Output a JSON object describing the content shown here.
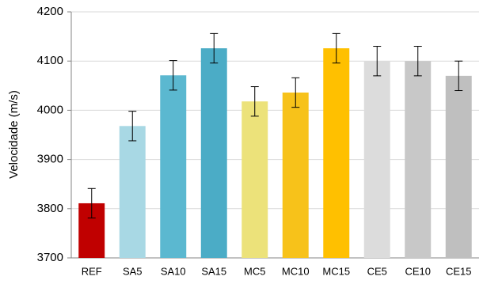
{
  "chart_data": {
    "type": "bar",
    "y_label": "Velocidade (m/s)",
    "categories": [
      "REF",
      "SA5",
      "SA10",
      "SA15",
      "MC5",
      "MC10",
      "MC15",
      "CE5",
      "CE10",
      "CE15"
    ],
    "values": [
      3811,
      3968,
      4071,
      4126,
      4018,
      4036,
      4126,
      4100,
      4100,
      4070
    ],
    "errors": [
      30,
      30,
      30,
      30,
      30,
      30,
      30,
      30,
      30,
      30
    ],
    "colors": [
      "#c00000",
      "#a8d8e4",
      "#5bb8d0",
      "#4bacc6",
      "#ece27a",
      "#f7c21a",
      "#ffc000",
      "#dcdcdc",
      "#c8c8c8",
      "#bfbfbf"
    ],
    "ylim": [
      3700,
      4200
    ],
    "yticks": [
      3700,
      3800,
      3900,
      4000,
      4100,
      4200
    ],
    "grid": true
  }
}
